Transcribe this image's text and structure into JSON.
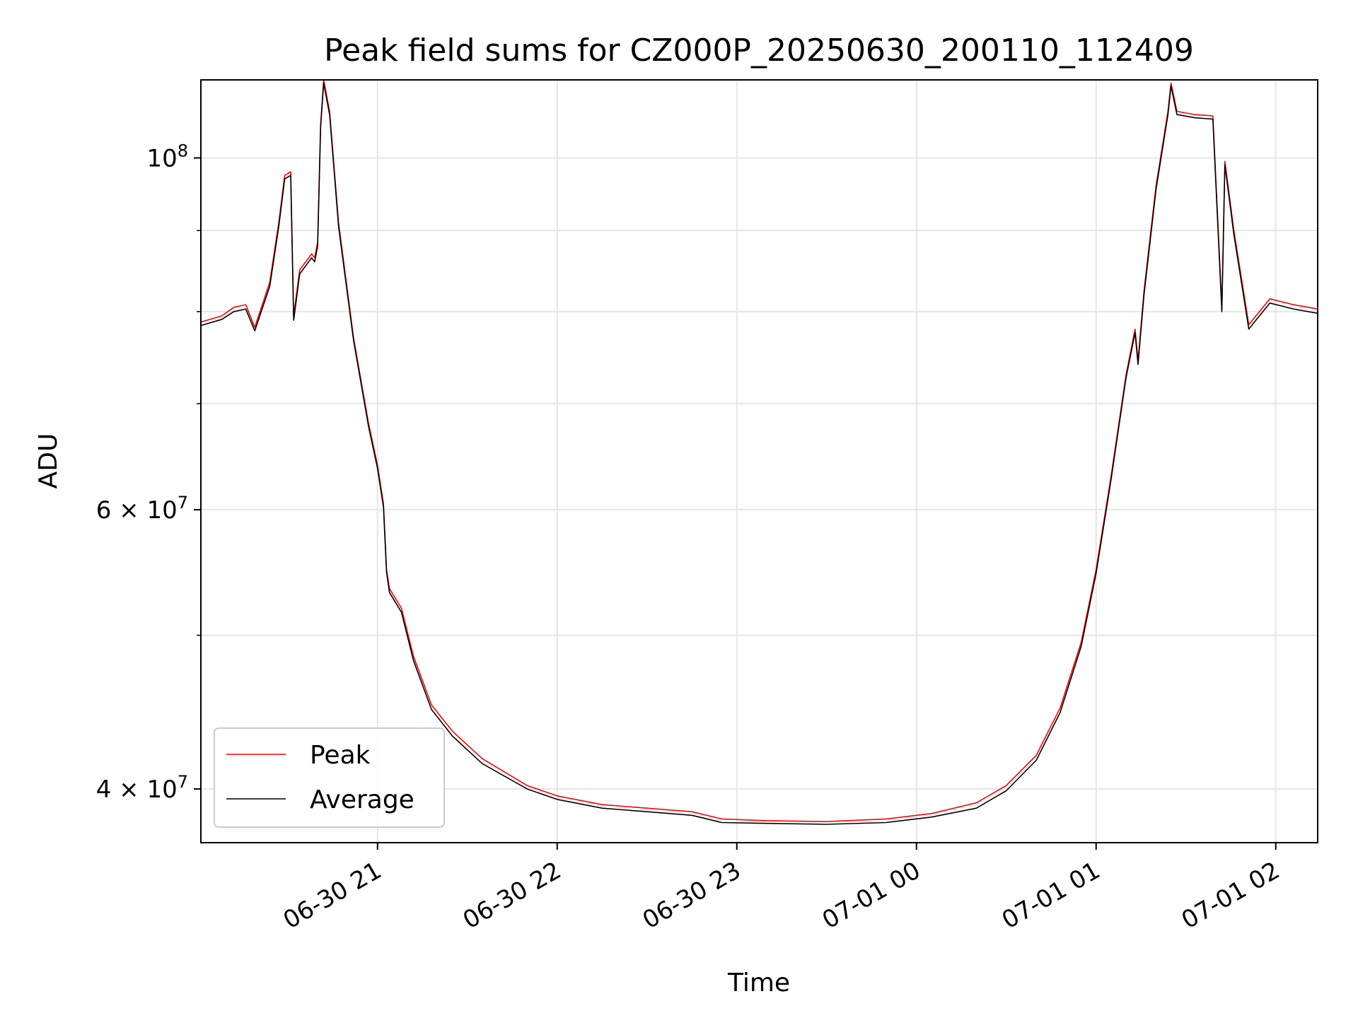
{
  "chart_data": {
    "type": "line",
    "title": "Peak field sums for CZ000P_20250630_200110_112409",
    "xlabel": "Time",
    "ylabel": "ADU",
    "x_ticks": [
      "06-30 21",
      "06-30 22",
      "06-30 23",
      "07-01 00",
      "07-01 01",
      "07-01 02"
    ],
    "x_tick_values": [
      "2025-06-30T21:00",
      "2025-06-30T22:00",
      "2025-06-30T23:00",
      "2025-07-01T00:00",
      "2025-07-01T01:00",
      "2025-07-01T02:00"
    ],
    "xlim": [
      "2025-06-30T20:01",
      "2025-07-01T02:14"
    ],
    "y_scale": "log",
    "ylim": [
      37000000,
      112000000
    ],
    "y_major_ticks": [
      {
        "value": 40000000,
        "mantissa": "4",
        "exponent": "7"
      },
      {
        "value": 60000000,
        "mantissa": "6",
        "exponent": "7"
      },
      {
        "value": 100000000,
        "mantissa": "",
        "exponent": "8"
      }
    ],
    "y_minor_grid": [
      50000000,
      70000000,
      80000000,
      90000000
    ],
    "grid": true,
    "legend_position": "lower-left",
    "series": [
      {
        "name": "Peak",
        "color": "#ff0000",
        "points": [
          [
            "2025-06-30T20:01",
            78800000
          ],
          [
            "2025-06-30T20:08",
            79500000
          ],
          [
            "2025-06-30T20:12",
            80500000
          ],
          [
            "2025-06-30T20:16",
            80800000
          ],
          [
            "2025-06-30T20:19",
            78200000
          ],
          [
            "2025-06-30T20:24",
            83500000
          ],
          [
            "2025-06-30T20:27",
            91000000
          ],
          [
            "2025-06-30T20:29",
            97500000
          ],
          [
            "2025-06-30T20:31",
            98000000
          ],
          [
            "2025-06-30T20:32",
            79500000
          ],
          [
            "2025-06-30T20:34",
            85000000
          ],
          [
            "2025-06-30T20:38",
            87000000
          ],
          [
            "2025-06-30T20:39",
            86500000
          ],
          [
            "2025-06-30T20:40",
            88500000
          ],
          [
            "2025-06-30T20:41",
            105000000
          ],
          [
            "2025-06-30T20:42",
            112000000
          ],
          [
            "2025-06-30T20:44",
            107000000
          ],
          [
            "2025-06-30T20:47",
            91000000
          ],
          [
            "2025-06-30T20:52",
            77000000
          ],
          [
            "2025-06-30T20:57",
            68000000
          ],
          [
            "2025-06-30T21:00",
            64000000
          ],
          [
            "2025-06-30T21:02",
            60500000
          ],
          [
            "2025-06-30T21:03",
            55000000
          ],
          [
            "2025-06-30T21:04",
            53500000
          ],
          [
            "2025-06-30T21:08",
            52000000
          ],
          [
            "2025-06-30T21:12",
            48500000
          ],
          [
            "2025-06-30T21:18",
            45200000
          ],
          [
            "2025-06-30T21:25",
            43500000
          ],
          [
            "2025-06-30T21:35",
            41800000
          ],
          [
            "2025-06-30T21:50",
            40200000
          ],
          [
            "2025-06-30T22:00",
            39600000
          ],
          [
            "2025-06-30T22:15",
            39100000
          ],
          [
            "2025-06-30T22:30",
            38900000
          ],
          [
            "2025-06-30T22:45",
            38700000
          ],
          [
            "2025-06-30T22:55",
            38300000
          ],
          [
            "2025-06-30T23:10",
            38200000
          ],
          [
            "2025-06-30T23:30",
            38150000
          ],
          [
            "2025-06-30T23:50",
            38300000
          ],
          [
            "2025-07-01T00:05",
            38600000
          ],
          [
            "2025-07-01T00:20",
            39200000
          ],
          [
            "2025-07-01T00:30",
            40200000
          ],
          [
            "2025-07-01T00:40",
            42000000
          ],
          [
            "2025-07-01T00:48",
            45000000
          ],
          [
            "2025-07-01T00:55",
            49500000
          ],
          [
            "2025-07-01T01:00",
            55000000
          ],
          [
            "2025-07-01T01:05",
            63000000
          ],
          [
            "2025-07-01T01:10",
            73000000
          ],
          [
            "2025-07-01T01:13",
            78000000
          ],
          [
            "2025-07-01T01:14",
            74500000
          ],
          [
            "2025-07-01T01:16",
            82500000
          ],
          [
            "2025-07-01T01:20",
            96000000
          ],
          [
            "2025-07-01T01:24",
            107000000
          ],
          [
            "2025-07-01T01:25",
            111500000
          ],
          [
            "2025-07-01T01:27",
            107000000
          ],
          [
            "2025-07-01T01:33",
            106500000
          ],
          [
            "2025-07-01T01:39",
            106300000
          ],
          [
            "2025-07-01T01:42",
            80500000
          ],
          [
            "2025-07-01T01:43",
            99500000
          ],
          [
            "2025-07-01T01:46",
            90000000
          ],
          [
            "2025-07-01T01:51",
            78500000
          ],
          [
            "2025-07-01T01:58",
            81500000
          ],
          [
            "2025-07-01T02:06",
            80800000
          ],
          [
            "2025-07-01T02:14",
            80300000
          ]
        ]
      },
      {
        "name": "Average",
        "color": "#000000",
        "points": [
          [
            "2025-06-30T20:01",
            78400000
          ],
          [
            "2025-06-30T20:08",
            79100000
          ],
          [
            "2025-06-30T20:12",
            80000000
          ],
          [
            "2025-06-30T20:16",
            80300000
          ],
          [
            "2025-06-30T20:19",
            77800000
          ],
          [
            "2025-06-30T20:24",
            83000000
          ],
          [
            "2025-06-30T20:27",
            90500000
          ],
          [
            "2025-06-30T20:29",
            97000000
          ],
          [
            "2025-06-30T20:31",
            97500000
          ],
          [
            "2025-06-30T20:32",
            79000000
          ],
          [
            "2025-06-30T20:34",
            84500000
          ],
          [
            "2025-06-30T20:38",
            86500000
          ],
          [
            "2025-06-30T20:39",
            86000000
          ],
          [
            "2025-06-30T20:40",
            88000000
          ],
          [
            "2025-06-30T20:41",
            104500000
          ],
          [
            "2025-06-30T20:42",
            111500000
          ],
          [
            "2025-06-30T20:44",
            106500000
          ],
          [
            "2025-06-30T20:47",
            90500000
          ],
          [
            "2025-06-30T20:52",
            76700000
          ],
          [
            "2025-06-30T20:57",
            67700000
          ],
          [
            "2025-06-30T21:00",
            63700000
          ],
          [
            "2025-06-30T21:02",
            60200000
          ],
          [
            "2025-06-30T21:03",
            54800000
          ],
          [
            "2025-06-30T21:04",
            53200000
          ],
          [
            "2025-06-30T21:08",
            51700000
          ],
          [
            "2025-06-30T21:12",
            48200000
          ],
          [
            "2025-06-30T21:18",
            44900000
          ],
          [
            "2025-06-30T21:25",
            43200000
          ],
          [
            "2025-06-30T21:35",
            41500000
          ],
          [
            "2025-06-30T21:50",
            40000000
          ],
          [
            "2025-06-30T22:00",
            39400000
          ],
          [
            "2025-06-30T22:15",
            38900000
          ],
          [
            "2025-06-30T22:30",
            38700000
          ],
          [
            "2025-06-30T22:45",
            38500000
          ],
          [
            "2025-06-30T22:55",
            38100000
          ],
          [
            "2025-06-30T23:10",
            38050000
          ],
          [
            "2025-06-30T23:30",
            38000000
          ],
          [
            "2025-06-30T23:50",
            38100000
          ],
          [
            "2025-07-01T00:05",
            38400000
          ],
          [
            "2025-07-01T00:20",
            38900000
          ],
          [
            "2025-07-01T00:30",
            39900000
          ],
          [
            "2025-07-01T00:40",
            41700000
          ],
          [
            "2025-07-01T00:48",
            44700000
          ],
          [
            "2025-07-01T00:55",
            49200000
          ],
          [
            "2025-07-01T01:00",
            54700000
          ],
          [
            "2025-07-01T01:05",
            62700000
          ],
          [
            "2025-07-01T01:10",
            72700000
          ],
          [
            "2025-07-01T01:13",
            77600000
          ],
          [
            "2025-07-01T01:14",
            74100000
          ],
          [
            "2025-07-01T01:16",
            82000000
          ],
          [
            "2025-07-01T01:20",
            95500000
          ],
          [
            "2025-07-01T01:24",
            106500000
          ],
          [
            "2025-07-01T01:25",
            111000000
          ],
          [
            "2025-07-01T01:27",
            106500000
          ],
          [
            "2025-07-01T01:33",
            106000000
          ],
          [
            "2025-07-01T01:39",
            105800000
          ],
          [
            "2025-07-01T01:42",
            80000000
          ],
          [
            "2025-07-01T01:43",
            99000000
          ],
          [
            "2025-07-01T01:46",
            89500000
          ],
          [
            "2025-07-01T01:51",
            78000000
          ],
          [
            "2025-07-01T01:58",
            81000000
          ],
          [
            "2025-07-01T02:06",
            80300000
          ],
          [
            "2025-07-01T02:14",
            79800000
          ]
        ]
      }
    ]
  }
}
